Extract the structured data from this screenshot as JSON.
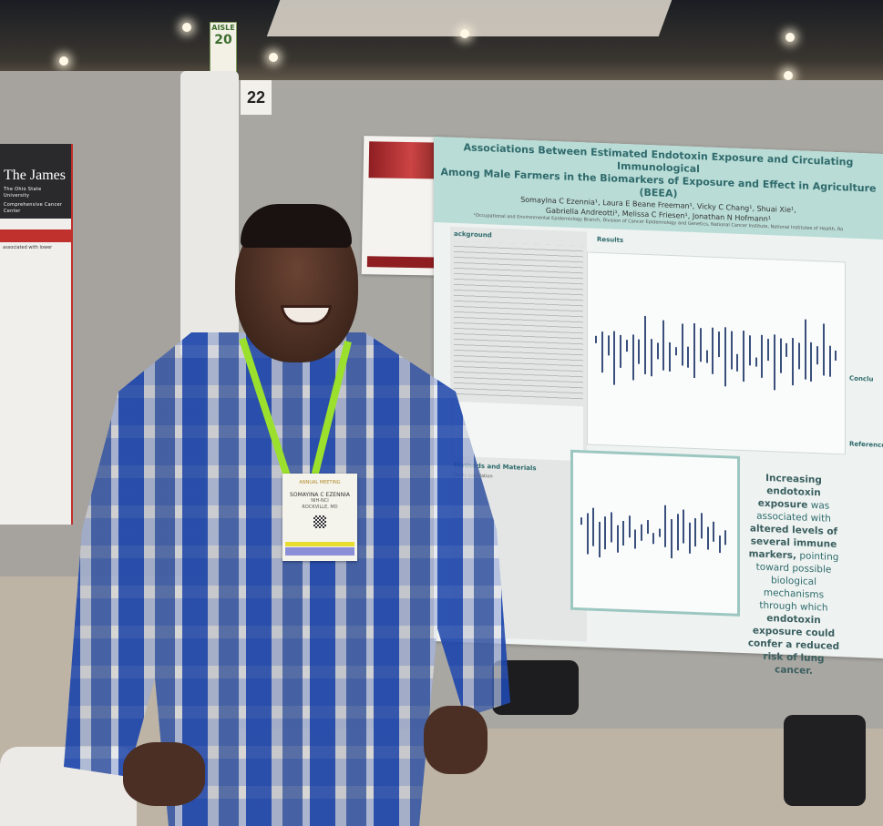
{
  "scene": {
    "aisle_sign": {
      "label": "AISLE",
      "number": "20"
    },
    "booth_number": "22"
  },
  "left_poster": {
    "brand": "The James",
    "institution": "The Ohio State University",
    "subtitle": "Comprehensive Cancer Center",
    "snippet": "associated with lower"
  },
  "poster": {
    "title_line1": "Associations Between Estimated Endotoxin Exposure and Circulating Immunological",
    "title_line2": "Among Male Farmers in the Biomarkers of Exposure and Effect in Agriculture (BEEA)",
    "authors_line1": "Somaylna C Ezennia¹, Laura E Beane Freeman¹, Vicky C Chang¹, Shuai Xie¹,",
    "authors_line2": "Gabriella Andreotti¹, Melissa C Friesen¹, Jonathan N Hofmann¹",
    "affiliation": "¹Occupational and Environmental Epidemiology Branch, Division of Cancer Epidemiology and Genetics, National Cancer Institute, National Institutes of Health, Ro",
    "sections": {
      "background": "ackground",
      "results": "Results",
      "methods": "Methods and Materials",
      "study_population": "Study population",
      "conclusions": "Conclu",
      "references": "References"
    },
    "conclusion_statement": {
      "p1": "Increasing endotoxin exposure",
      "p2": "was associated with",
      "p3": "altered levels of several immune markers,",
      "p4": "pointing toward possible biological mechanisms through which",
      "p5": "endotoxin exposure could confer a reduced risk of lung cancer."
    },
    "accent_color": "#2f6a6c",
    "header_color": "#b9dcd6"
  },
  "badge": {
    "event": "ANNUAL MEETING",
    "name": "SOMAYINA C EZENNIA",
    "org": "NIH-NCI",
    "city": "ROCKVILLE, MD"
  }
}
